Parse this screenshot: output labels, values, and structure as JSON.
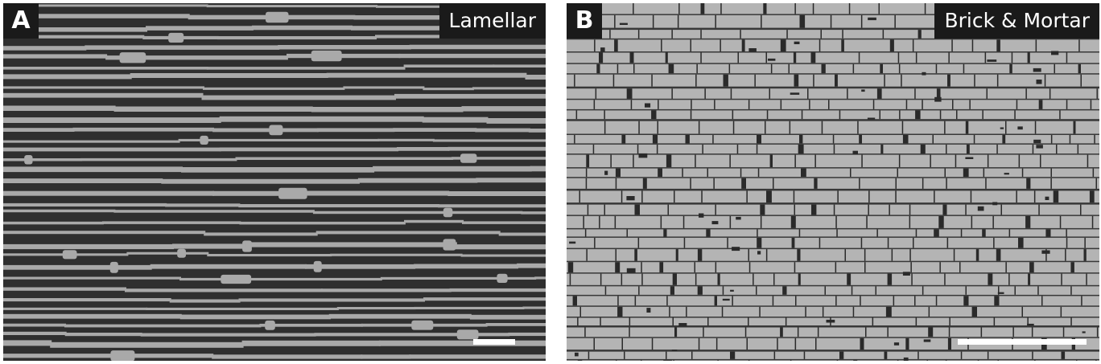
{
  "panels": [
    {
      "letter": "A",
      "label": "Lamellar",
      "texture": "layered-lamellar-micrograph",
      "colors": {
        "layer_dark": "#2f2f2f",
        "layer_light": "#a9a9a9"
      }
    },
    {
      "letter": "B",
      "label": "Brick & Mortar",
      "texture": "brick-and-mortar-micrograph",
      "colors": {
        "brick": "#b4b4b4",
        "mortar": "#2a2a2a"
      }
    }
  ]
}
